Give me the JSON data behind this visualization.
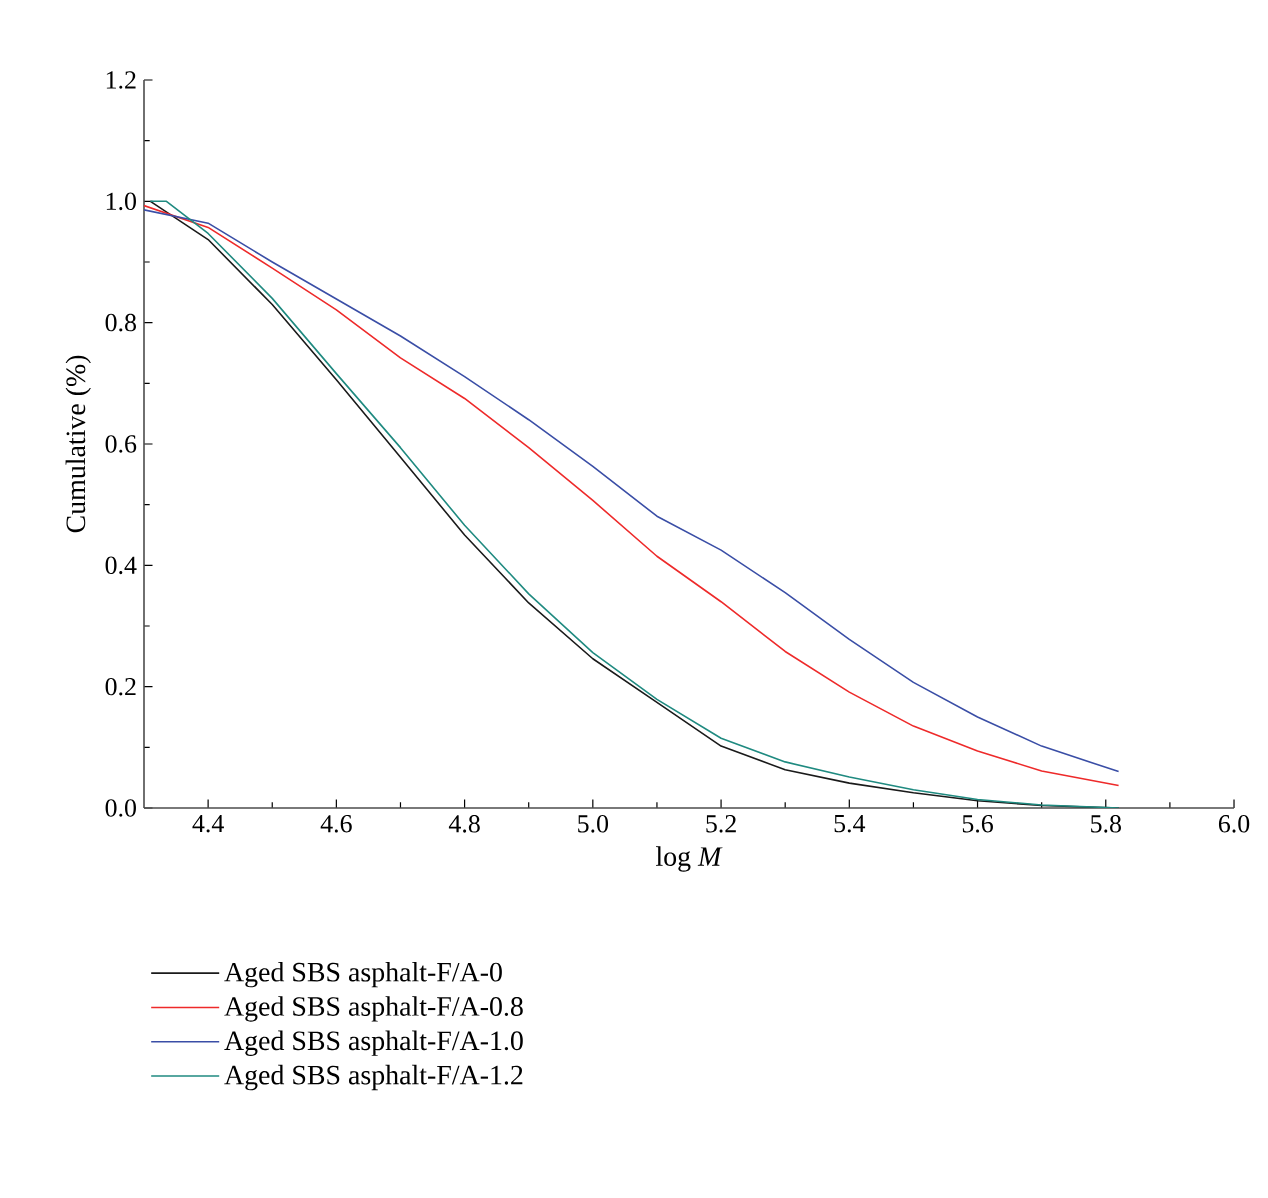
{
  "chart_data": {
    "type": "line",
    "xlabel": "log *M*",
    "ylabel": "Cumulative (%)",
    "xlim": [
      4.3,
      6.0
    ],
    "ylim": [
      0,
      1.2
    ],
    "xticks": [
      {
        "value": 4.4,
        "label": "4.4"
      },
      {
        "value": 4.6,
        "label": "4.6"
      },
      {
        "value": 4.8,
        "label": "4.8"
      },
      {
        "value": 5.0,
        "label": "5.0"
      },
      {
        "value": 5.2,
        "label": "5.2"
      },
      {
        "value": 5.4,
        "label": "5.4"
      },
      {
        "value": 5.6,
        "label": "5.6"
      },
      {
        "value": 5.8,
        "label": "5.8"
      },
      {
        "value": 6.0,
        "label": "6.0"
      }
    ],
    "yticks": [
      {
        "value": 0,
        "label": "0.0"
      },
      {
        "value": 0.2,
        "label": "0.2"
      },
      {
        "value": 0.4,
        "label": "0.4"
      },
      {
        "value": 0.6,
        "label": "0.6"
      },
      {
        "value": 0.8,
        "label": "0.8"
      },
      {
        "value": 1.0,
        "label": "1.0"
      },
      {
        "value": 1.2,
        "label": "1.2"
      }
    ],
    "grid": false,
    "legend": "bottom",
    "marker": "none",
    "line_style": "solid",
    "series": [
      {
        "name": "Aged SBS asphalt-F/A-0",
        "color": "#1a1a1a",
        "x": [
          4.31,
          4.4,
          4.5,
          4.6,
          4.7,
          4.8,
          4.9,
          5.0,
          5.1,
          5.2,
          5.3,
          5.4,
          5.5,
          5.6,
          5.7,
          5.82
        ],
        "values": [
          1.0,
          0.937,
          0.83,
          0.706,
          0.578,
          0.45,
          0.338,
          0.246,
          0.174,
          0.102,
          0.063,
          0.041,
          0.025,
          0.012,
          0.004,
          0.0
        ]
      },
      {
        "name": "Aged SBS asphalt-F/A-0.8",
        "color": "#ee2a2a",
        "x": [
          4.3,
          4.4,
          4.5,
          4.6,
          4.7,
          4.8,
          4.9,
          5.0,
          5.1,
          5.2,
          5.3,
          5.4,
          5.5,
          5.6,
          5.7,
          5.82
        ],
        "values": [
          0.993,
          0.957,
          0.89,
          0.821,
          0.742,
          0.675,
          0.594,
          0.507,
          0.415,
          0.34,
          0.258,
          0.191,
          0.135,
          0.094,
          0.061,
          0.037
        ]
      },
      {
        "name": "Aged SBS asphalt-F/A-1.0",
        "color": "#3a4ea6",
        "x": [
          4.3,
          4.4,
          4.5,
          4.6,
          4.7,
          4.8,
          4.9,
          5.0,
          5.1,
          5.2,
          5.3,
          5.4,
          5.5,
          5.6,
          5.7,
          5.82
        ],
        "values": [
          0.986,
          0.964,
          0.9,
          0.839,
          0.778,
          0.711,
          0.64,
          0.563,
          0.481,
          0.425,
          0.355,
          0.278,
          0.207,
          0.15,
          0.102,
          0.06
        ]
      },
      {
        "name": "Aged SBS asphalt-F/A-1.2",
        "color": "#1f8a80",
        "x": [
          4.31,
          4.335,
          4.4,
          4.5,
          4.6,
          4.7,
          4.8,
          4.9,
          5.0,
          5.1,
          5.2,
          5.3,
          5.4,
          5.5,
          5.6,
          5.7,
          5.82
        ],
        "values": [
          1.0,
          1.0,
          0.947,
          0.84,
          0.716,
          0.594,
          0.466,
          0.353,
          0.256,
          0.179,
          0.115,
          0.076,
          0.051,
          0.03,
          0.014,
          0.005,
          0.0
        ]
      }
    ]
  }
}
